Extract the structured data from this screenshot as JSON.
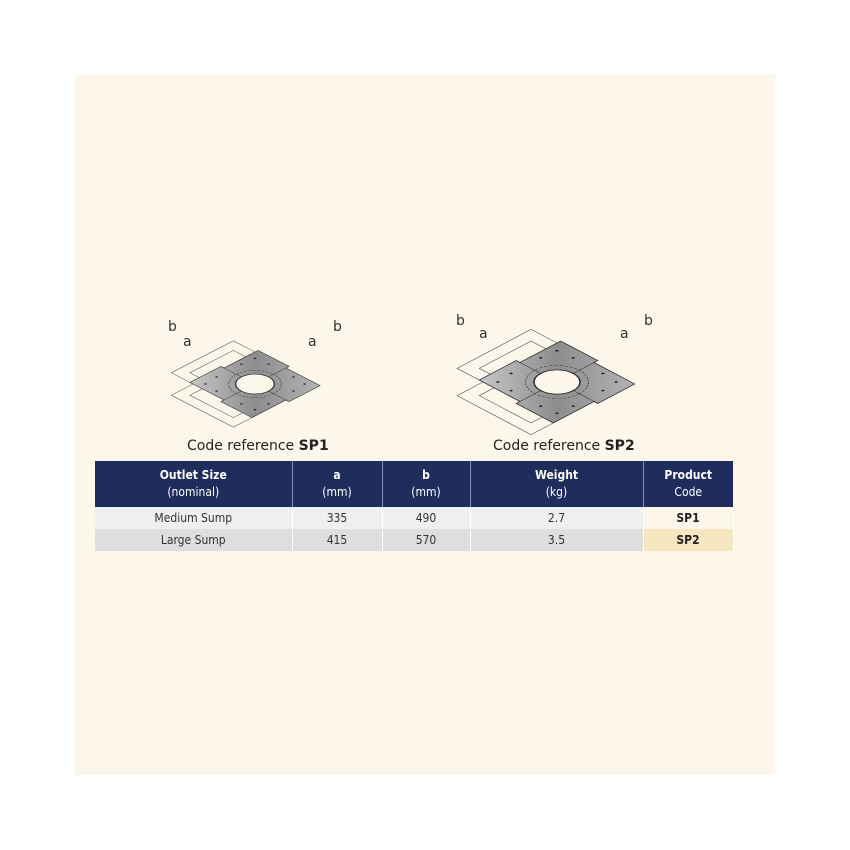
{
  "diagrams": [
    {
      "caption_prefix": "Code reference",
      "code": "SP1",
      "label_a": "a",
      "label_b": "b"
    },
    {
      "caption_prefix": "Code reference",
      "code": "SP2",
      "label_a": "a",
      "label_b": "b"
    }
  ],
  "table": {
    "headers": [
      {
        "title": "Outlet Size",
        "sub": "(nominal)"
      },
      {
        "title": "a",
        "sub": "(mm)"
      },
      {
        "title": "b",
        "sub": "(mm)"
      },
      {
        "title": "Weight",
        "sub": "(kg)"
      },
      {
        "title": "Product",
        "sub": "Code"
      }
    ],
    "rows": [
      [
        "Medium Sump",
        "335",
        "490",
        "2.7",
        "SP1"
      ],
      [
        "Large Sump",
        "415",
        "570",
        "3.5",
        "SP2"
      ]
    ]
  },
  "colors": {
    "header": "#1f2d5c",
    "background": "#fdf6ea",
    "highlight": "#f6e7c1"
  }
}
